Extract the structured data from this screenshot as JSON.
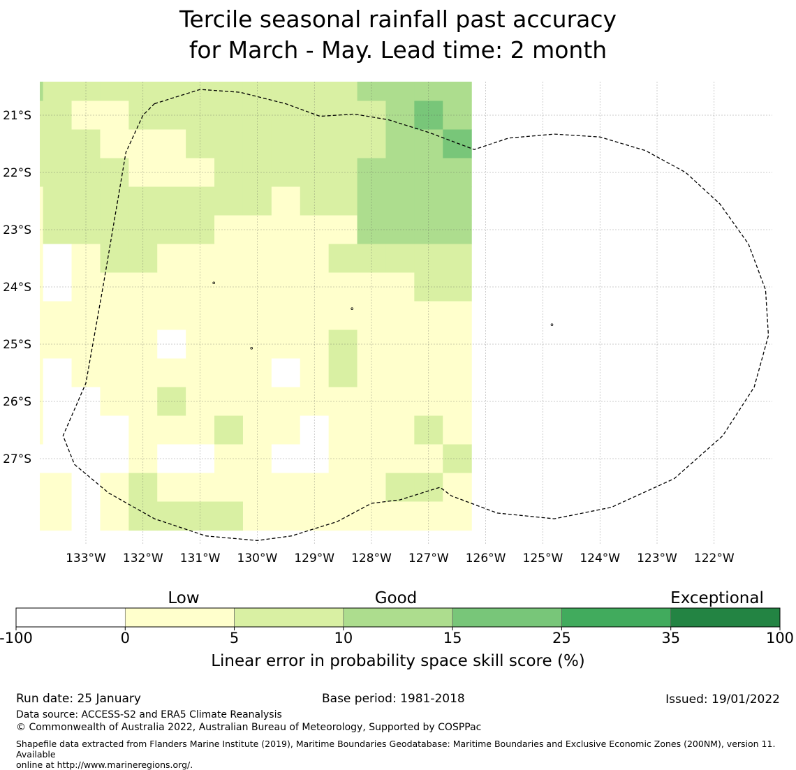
{
  "title": {
    "line1": "Tercile seasonal rainfall past accuracy",
    "line2": "for March - May. Lead time: 2 month"
  },
  "map": {
    "lon_labels": [
      "133°W",
      "132°W",
      "131°W",
      "130°W",
      "129°W",
      "128°W",
      "127°W",
      "126°W",
      "125°W",
      "124°W",
      "123°W",
      "122°W"
    ],
    "lat_labels": [
      "21°S",
      "22°S",
      "23°S",
      "24°S",
      "25°S",
      "26°S",
      "27°S"
    ],
    "category_colors": [
      "#ffffff",
      "#ffffcc",
      "#d9f0a3",
      "#addd8e",
      "#78c679",
      "#41ab5d",
      "#238443"
    ],
    "grid_categories": [
      [
        3,
        2,
        2,
        2,
        2,
        2,
        2,
        2,
        2,
        2,
        2,
        2,
        3,
        3,
        3,
        3
      ],
      [
        2,
        2,
        1,
        1,
        2,
        2,
        2,
        2,
        2,
        2,
        2,
        2,
        2,
        3,
        4,
        3
      ],
      [
        2,
        2,
        2,
        1,
        1,
        1,
        2,
        2,
        2,
        2,
        2,
        2,
        2,
        3,
        3,
        4
      ],
      [
        2,
        2,
        2,
        2,
        1,
        1,
        1,
        2,
        2,
        2,
        2,
        2,
        3,
        3,
        3,
        3
      ],
      [
        1,
        2,
        2,
        2,
        2,
        2,
        2,
        2,
        2,
        1,
        2,
        2,
        3,
        3,
        3,
        3
      ],
      [
        1,
        2,
        2,
        2,
        2,
        2,
        2,
        1,
        1,
        1,
        1,
        1,
        3,
        3,
        3,
        3
      ],
      [
        1,
        0,
        1,
        2,
        2,
        1,
        1,
        1,
        1,
        1,
        1,
        2,
        2,
        2,
        2,
        2
      ],
      [
        1,
        0,
        1,
        1,
        1,
        1,
        1,
        1,
        1,
        1,
        1,
        1,
        1,
        1,
        2,
        2
      ],
      [
        1,
        1,
        1,
        1,
        1,
        1,
        1,
        1,
        1,
        1,
        1,
        1,
        1,
        1,
        1,
        1
      ],
      [
        1,
        1,
        1,
        1,
        1,
        0,
        1,
        1,
        1,
        1,
        1,
        2,
        1,
        1,
        1,
        1
      ],
      [
        1,
        0,
        1,
        1,
        1,
        1,
        1,
        1,
        1,
        0,
        1,
        2,
        1,
        1,
        1,
        1
      ],
      [
        1,
        0,
        0,
        1,
        1,
        2,
        1,
        1,
        1,
        1,
        1,
        1,
        1,
        1,
        1,
        1
      ],
      [
        1,
        0,
        0,
        0,
        1,
        1,
        1,
        2,
        1,
        1,
        0,
        1,
        1,
        1,
        2,
        1
      ],
      [
        0,
        0,
        0,
        0,
        1,
        0,
        0,
        1,
        1,
        0,
        0,
        1,
        1,
        1,
        1,
        2
      ],
      [
        1,
        1,
        0,
        1,
        2,
        1,
        1,
        1,
        1,
        1,
        1,
        1,
        1,
        2,
        2,
        1
      ],
      [
        1,
        1,
        0,
        1,
        2,
        2,
        2,
        2,
        1,
        1,
        1,
        1,
        1,
        1,
        1,
        1
      ]
    ],
    "boundary_lonlat": [
      [
        -131.8,
        20.8
      ],
      [
        -131.0,
        20.55
      ],
      [
        -130.3,
        20.6
      ],
      [
        -129.5,
        20.8
      ],
      [
        -128.9,
        21.02
      ],
      [
        -128.3,
        20.98
      ],
      [
        -127.7,
        21.08
      ],
      [
        -127.0,
        21.3
      ],
      [
        -126.2,
        21.6
      ],
      [
        -125.6,
        21.4
      ],
      [
        -124.8,
        21.33
      ],
      [
        -124.0,
        21.38
      ],
      [
        -123.2,
        21.62
      ],
      [
        -122.5,
        22.0
      ],
      [
        -121.9,
        22.55
      ],
      [
        -121.4,
        23.25
      ],
      [
        -121.1,
        24.05
      ],
      [
        -121.05,
        24.85
      ],
      [
        -121.3,
        25.75
      ],
      [
        -121.85,
        26.6
      ],
      [
        -122.7,
        27.35
      ],
      [
        -123.8,
        27.85
      ],
      [
        -124.8,
        28.05
      ],
      [
        -125.8,
        27.95
      ],
      [
        -126.6,
        27.65
      ],
      [
        -126.8,
        27.5
      ],
      [
        -127.5,
        27.72
      ],
      [
        -128.0,
        27.78
      ],
      [
        -128.6,
        28.1
      ],
      [
        -129.4,
        28.35
      ],
      [
        -130.0,
        28.43
      ],
      [
        -130.9,
        28.35
      ],
      [
        -131.8,
        28.05
      ],
      [
        -132.6,
        27.6
      ],
      [
        -133.2,
        27.1
      ],
      [
        -133.4,
        26.6
      ],
      [
        -133.0,
        25.68
      ],
      [
        -132.7,
        24.0
      ],
      [
        -132.3,
        21.65
      ],
      [
        -132.0,
        21.0
      ],
      [
        -131.8,
        20.8
      ]
    ],
    "islands": [
      [
        -130.76,
        23.93
      ],
      [
        -128.34,
        24.38
      ],
      [
        -124.84,
        24.66
      ],
      [
        -130.1,
        25.07
      ]
    ]
  },
  "colorbar": {
    "title_low": "Low",
    "title_good": "Good",
    "title_exceptional": "Exceptional",
    "ticks": [
      "-100",
      "0",
      "5",
      "10",
      "15",
      "25",
      "35",
      "100"
    ],
    "label": "Linear error in probability space skill score (%)"
  },
  "footer": {
    "run_date": "Run date: 25 January",
    "base_period": "Base period: 1981-2018",
    "issued": "Issued: 19/01/2022",
    "data_source": "Data source: ACCESS-S2 and ERA5 Climate Reanalysis",
    "copyright": "© Commonwealth of Australia 2022, Australian Bureau of Meteorology, Supported by COSPPac",
    "shapefile_line1": "Shapefile data extracted from Flanders Marine Institute (2019), Maritime Boundaries Geodatabase: Maritime Boundaries and Exclusive Economic Zones (200NM), version 11. Available",
    "shapefile_line2": "online at http://www.marineregions.org/."
  }
}
